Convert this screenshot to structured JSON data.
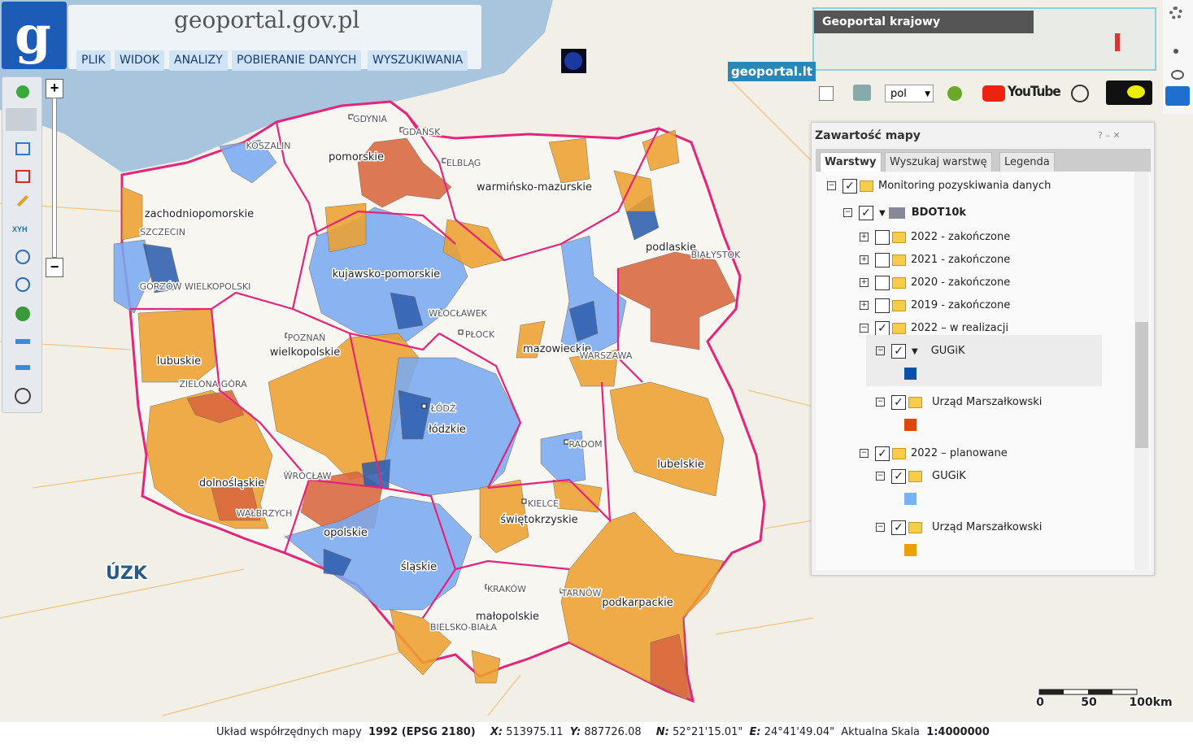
{
  "header": {
    "logo_text": "geoportal.gov.pl",
    "menu": [
      "PLIK",
      "WIDOK",
      "ANALIZY",
      "POBIERANIE DANYCH",
      "WYSZUKIWANIA"
    ]
  },
  "overview": {
    "title": "Geoportal krajowy",
    "partner": "geoportal.lt"
  },
  "toolbar": {
    "language": "pol",
    "youtube": "YouTube",
    "xyh": "XYH"
  },
  "map_content_panel": {
    "title": "Zawartość mapy",
    "tabs": [
      "Warstwy",
      "Wyszukaj warstwę",
      "Legenda"
    ],
    "tree": [
      {
        "label": "Monitoring pozyskiwania danych",
        "level": 0,
        "expanded": true,
        "checked": true
      },
      {
        "label": "BDOT10k",
        "level": 1,
        "expanded": true,
        "checked": true,
        "bold": true
      },
      {
        "label": "2022 - zakończone",
        "level": 2,
        "expanded": false,
        "checked": false
      },
      {
        "label": "2021 - zakończone",
        "level": 2,
        "expanded": false,
        "checked": false
      },
      {
        "label": "2020 - zakończone",
        "level": 2,
        "expanded": false,
        "checked": false
      },
      {
        "label": "2019 - zakończone",
        "level": 2,
        "expanded": false,
        "checked": false
      },
      {
        "label": "2022 – w realizacji",
        "level": 2,
        "expanded": true,
        "checked": true
      },
      {
        "label": "GUGiK",
        "level": 3,
        "expanded": true,
        "checked": true,
        "swatch": "#0a4fa8"
      },
      {
        "label": "Urząd Marszałkowski",
        "level": 3,
        "expanded": true,
        "checked": true,
        "swatch": "#e2450c"
      },
      {
        "label": "2022 – planowane",
        "level": 2,
        "expanded": true,
        "checked": true
      },
      {
        "label": "GUGiK",
        "level": 3,
        "expanded": true,
        "checked": true,
        "swatch": "#7ab0f5"
      },
      {
        "label": "Urząd Marszałkowski",
        "level": 3,
        "expanded": true,
        "checked": true,
        "swatch": "#eba000"
      }
    ]
  },
  "map": {
    "regions": [
      "zachodniopomorskie",
      "pomorskie",
      "warmińsko-mazurskie",
      "podlaskie",
      "kujawsko-pomorskie",
      "wielkopolskie",
      "lubuskie",
      "mazowieckie",
      "łódzkie",
      "dolnośląskie",
      "opolskie",
      "śląskie",
      "świętokrzyskie",
      "lubelskie",
      "małopolskie",
      "podkarpackie"
    ],
    "cities": [
      "GDYNIA",
      "GDAŃSK",
      "ELBLĄG",
      "KOSZALIN",
      "SZCZECIN",
      "GORZÓW WIELKOPOLSKI",
      "POZNAŃ",
      "ZIELONA GÓRA",
      "WROCŁAW",
      "WAŁBRZYCH",
      "PŁOCK",
      "WŁOCŁAWEK",
      "WARSZAWA",
      "ŁÓDŹ",
      "RADOM",
      "KIELCE",
      "KRAKÓW",
      "TARNÓW",
      "BIAŁYSTOK",
      "BIELSKO-BIAŁA"
    ],
    "watermark": "ÚZK",
    "scale": [
      "0",
      "50",
      "100km"
    ]
  },
  "status_bar": {
    "crs_label": "Układ współrzędnych mapy",
    "crs": "1992 (EPSG 2180)",
    "x_label": "X:",
    "x": "513975.11",
    "y_label": "Y:",
    "y": "887726.08",
    "n_label": "N:",
    "n": "52°21'15.01\"",
    "e_label": "E:",
    "e": "24°41'49.04\"",
    "scale_label": "Aktualna Skala",
    "scale": "1:4000000"
  }
}
